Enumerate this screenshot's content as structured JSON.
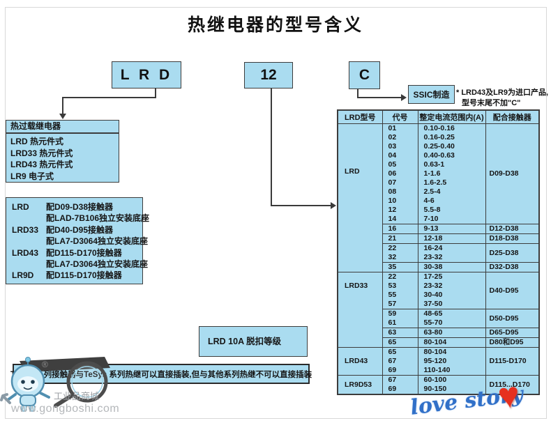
{
  "title": "热继电器的型号含义",
  "code_boxes": {
    "lrd": "L R D",
    "num": "12",
    "c": "C"
  },
  "ssic_label": "SSIC制造",
  "import_note": {
    "line1": "* LRD43及LR9为进口产品,",
    "line2": "型号末尾不加\"C\""
  },
  "overload_box": {
    "header": "热过载继电器",
    "items": [
      "LRD 热元件式",
      "LRD33 热元件式",
      "LRD43 热元件式",
      "LR9 电子式"
    ]
  },
  "pairing_box": {
    "rows": [
      {
        "label": "LRD",
        "desc": "配D09-D38接触器"
      },
      {
        "label": "",
        "desc": "配LAD-7B106独立安装底座"
      },
      {
        "label": "LRD33",
        "desc": "配D40-D95接触器"
      },
      {
        "label": "",
        "desc": "配LA7-D3064独立安装底座"
      },
      {
        "label": "LRD43",
        "desc": "配D115-D170接触器"
      },
      {
        "label": "",
        "desc": "配LA7-D3064独立安装底座"
      },
      {
        "label": "LR9D",
        "desc": "配D115-D170接触器"
      }
    ]
  },
  "trip_class_box": "LRD 10A 脱扣等级",
  "bottom_note": "TeSys 系列接触器与TeSys 系列热继可以直接插装,但与其他系列热继不可以直接插装",
  "table": {
    "headers": [
      "LRD型号",
      "代号",
      "整定电流范围内(A)",
      "配合接触器"
    ],
    "sections": [
      {
        "model": "LRD",
        "groups": [
          {
            "contactor": "D09-D38",
            "rows": [
              [
                "01",
                "0.10-0.16"
              ],
              [
                "02",
                "0.16-0.25"
              ],
              [
                "03",
                "0.25-0.40"
              ],
              [
                "04",
                "0.40-0.63"
              ],
              [
                "05",
                "0.63-1"
              ],
              [
                "06",
                "1-1.6"
              ],
              [
                "07",
                "1.6-2.5"
              ],
              [
                "08",
                "2.5-4"
              ],
              [
                "10",
                "4-6"
              ],
              [
                "12",
                "5.5-8"
              ],
              [
                "14",
                "7-10"
              ]
            ]
          },
          {
            "contactor": "D12-D38",
            "rows": [
              [
                "16",
                "9-13"
              ]
            ]
          },
          {
            "contactor": "D18-D38",
            "rows": [
              [
                "21",
                "12-18"
              ]
            ]
          },
          {
            "contactor": "D25-D38",
            "rows": [
              [
                "22",
                "16-24"
              ],
              [
                "32",
                "23-32"
              ]
            ]
          },
          {
            "contactor": "D32-D38",
            "rows": [
              [
                "35",
                "30-38"
              ]
            ]
          }
        ]
      },
      {
        "model": "LRD33",
        "groups": [
          {
            "contactor": "D40-D95",
            "rows": [
              [
                "22",
                "17-25"
              ],
              [
                "53",
                "23-32"
              ],
              [
                "55",
                "30-40"
              ],
              [
                "57",
                "37-50"
              ]
            ]
          },
          {
            "contactor": "D50-D95",
            "rows": [
              [
                "59",
                "48-65"
              ],
              [
                "61",
                "55-70"
              ]
            ]
          },
          {
            "contactor": "D65-D95",
            "rows": [
              [
                "63",
                "63-80"
              ]
            ]
          },
          {
            "contactor": "D80和D95",
            "rows": [
              [
                "65",
                "80-104"
              ]
            ]
          }
        ]
      },
      {
        "model": "LRD43",
        "groups": [
          {
            "contactor": "D115-D170",
            "rows": [
              [
                "65",
                "80-104"
              ],
              [
                "67",
                "95-120"
              ],
              [
                "69",
                "110-140"
              ]
            ]
          }
        ]
      },
      {
        "model": "LR9D53",
        "groups": [
          {
            "contactor": "D115...D170",
            "rows": [
              [
                "67",
                "60-100"
              ],
              [
                "69",
                "90-150"
              ]
            ]
          }
        ]
      }
    ]
  },
  "watermark": {
    "reg": "®",
    "store": "工业品商城",
    "url": "www.gongboshi.com"
  },
  "love_story": {
    "text": "love story",
    "heart": "♥"
  },
  "colors": {
    "box_fill": "#aadcf0",
    "box_border": "#3c3c3c",
    "line": "#3a3a3a",
    "love_blue": "#3170c8",
    "heart_red": "#e6301f"
  }
}
